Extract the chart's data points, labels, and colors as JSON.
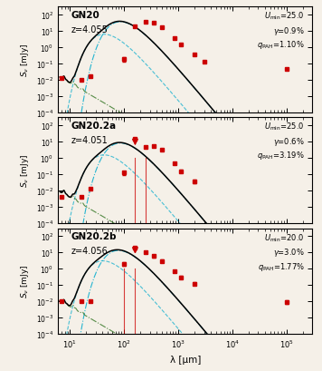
{
  "panels": [
    {
      "name": "GN20",
      "z": "z=4.055",
      "umin": "U_min=25.0",
      "gamma": "γ=0.9%",
      "qpah": "q_PAH=1.10%",
      "data_points": [
        [
          7.0,
          0.012,
          0.0,
          false
        ],
        [
          16.0,
          0.01,
          0.0,
          false
        ],
        [
          24.0,
          0.015,
          0.0,
          false
        ],
        [
          100.0,
          0.18,
          0.05,
          false
        ],
        [
          160.0,
          18.0,
          2.0,
          false
        ],
        [
          250.0,
          35.0,
          3.0,
          false
        ],
        [
          350.0,
          30.0,
          3.0,
          false
        ],
        [
          500.0,
          17.0,
          2.0,
          false
        ],
        [
          850.0,
          3.5,
          0.3,
          false
        ],
        [
          1100.0,
          1.5,
          0.2,
          false
        ],
        [
          2000.0,
          0.35,
          0.05,
          false
        ],
        [
          3000.0,
          0.12,
          0.015,
          false
        ],
        [
          100000.0,
          0.045,
          0.005,
          false
        ]
      ],
      "vlines": []
    },
    {
      "name": "GN20.2a",
      "z": "z=4.051",
      "umin": "U_min=25.0",
      "gamma": "γ=0.6%",
      "qpah": "q_PAH=3.19%",
      "data_points": [
        [
          7.0,
          0.004,
          0.0,
          false
        ],
        [
          16.0,
          0.004,
          0.0,
          false
        ],
        [
          24.0,
          0.012,
          0.0,
          false
        ],
        [
          100.0,
          0.12,
          0.03,
          false
        ],
        [
          160.0,
          14.0,
          0.0,
          true
        ],
        [
          250.0,
          4.5,
          0.5,
          false
        ],
        [
          350.0,
          5.5,
          0.6,
          false
        ],
        [
          500.0,
          3.0,
          0.4,
          false
        ],
        [
          850.0,
          0.45,
          0.05,
          false
        ],
        [
          1100.0,
          0.15,
          0.03,
          false
        ],
        [
          2000.0,
          0.035,
          0.008,
          false
        ]
      ],
      "vlines": [
        160.0,
        250.0
      ]
    },
    {
      "name": "GN20.2b",
      "z": "z=4.056",
      "umin": "U_min=20.0",
      "gamma": "γ=3.0%",
      "qpah": "q_PAH=1.77%",
      "data_points": [
        [
          7.0,
          0.01,
          0.0,
          false
        ],
        [
          16.0,
          0.01,
          0.0,
          false
        ],
        [
          24.0,
          0.01,
          0.0,
          false
        ],
        [
          100.0,
          2.0,
          0.5,
          false
        ],
        [
          160.0,
          20.0,
          0.0,
          true
        ],
        [
          250.0,
          10.0,
          1.5,
          false
        ],
        [
          350.0,
          6.0,
          1.0,
          false
        ],
        [
          500.0,
          3.0,
          0.5,
          false
        ],
        [
          850.0,
          0.7,
          0.1,
          false
        ],
        [
          1100.0,
          0.3,
          0.05,
          false
        ],
        [
          2000.0,
          0.12,
          0.02,
          false
        ],
        [
          100000.0,
          0.009,
          0.002,
          false
        ]
      ],
      "vlines": [
        100.0,
        160.0
      ]
    }
  ],
  "xlim": [
    6.0,
    300000.0
  ],
  "ylim": [
    0.0001,
    300.0
  ],
  "xlabel": "λ [μm]",
  "background": "#f5f0e8",
  "data_color": "#cc0000",
  "cyan_color": "#00aacc",
  "green_color": "#3a7a2a"
}
